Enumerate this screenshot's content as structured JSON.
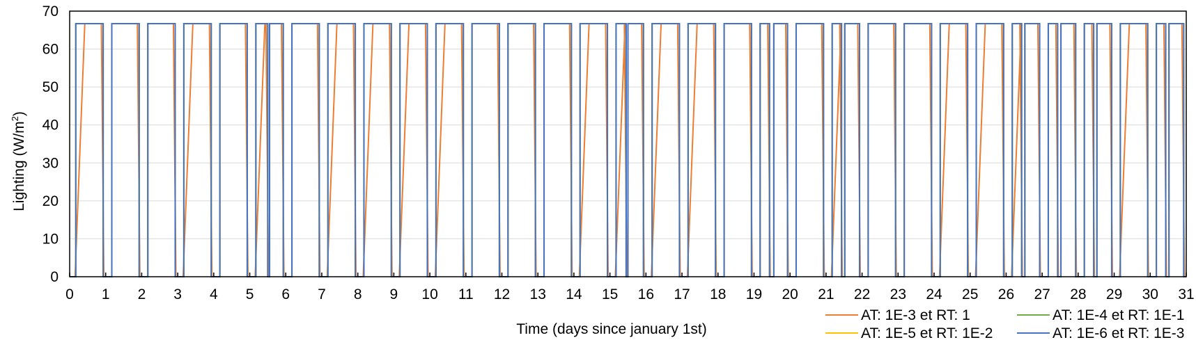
{
  "chart_data": {
    "type": "line",
    "title": "",
    "xlabel": "Time (days since january 1st)",
    "ylabel_main": "Lighting (W/m",
    "ylabel_sup": "2",
    "ylabel_close": ")",
    "xlim": [
      0,
      31
    ],
    "ylim": [
      0,
      70
    ],
    "x_ticks": [
      0,
      1,
      2,
      3,
      4,
      5,
      6,
      7,
      8,
      9,
      10,
      11,
      12,
      13,
      14,
      15,
      16,
      17,
      18,
      19,
      20,
      21,
      22,
      23,
      24,
      25,
      26,
      27,
      28,
      29,
      30,
      31
    ],
    "y_ticks": [
      0,
      10,
      20,
      30,
      40,
      50,
      60,
      70
    ],
    "grid": "horizontal",
    "legend_position": "bottom-right",
    "on_value": 66.7,
    "blue_on_intervals": [
      [
        0.17,
        0.93
      ],
      [
        1.17,
        1.93
      ],
      [
        2.17,
        2.93
      ],
      [
        3.17,
        3.93
      ],
      [
        4.17,
        4.93
      ],
      [
        5.17,
        5.5
      ],
      [
        5.55,
        5.93
      ],
      [
        6.17,
        6.93
      ],
      [
        7.17,
        7.93
      ],
      [
        8.17,
        8.93
      ],
      [
        9.17,
        9.93
      ],
      [
        10.17,
        10.93
      ],
      [
        11.17,
        11.93
      ],
      [
        12.17,
        12.93
      ],
      [
        13.17,
        13.93
      ],
      [
        14.17,
        14.93
      ],
      [
        15.17,
        15.45
      ],
      [
        15.5,
        15.93
      ],
      [
        16.17,
        16.93
      ],
      [
        17.17,
        17.93
      ],
      [
        18.17,
        18.93
      ],
      [
        19.17,
        19.43
      ],
      [
        19.55,
        19.93
      ],
      [
        20.17,
        20.93
      ],
      [
        21.17,
        21.43
      ],
      [
        21.52,
        21.93
      ],
      [
        22.17,
        22.93
      ],
      [
        23.17,
        23.93
      ],
      [
        24.17,
        24.93
      ],
      [
        25.17,
        25.93
      ],
      [
        26.17,
        26.43
      ],
      [
        26.52,
        26.93
      ],
      [
        27.17,
        27.43
      ],
      [
        27.52,
        27.93
      ],
      [
        28.17,
        28.43
      ],
      [
        28.52,
        28.93
      ],
      [
        29.17,
        29.93
      ],
      [
        30.17,
        30.43
      ],
      [
        30.52,
        30.93
      ]
    ],
    "orange_ramp_days": [
      0,
      3,
      5,
      7,
      8,
      9,
      10,
      14,
      15,
      16,
      17,
      21,
      24,
      25,
      26,
      29
    ],
    "orange_ramp_width": 0.25,
    "series": [
      {
        "name": "AT: 1E-3 et RT: 1",
        "color": "#ED7D31"
      },
      {
        "name": "AT: 1E-4 et RT: 1E-1",
        "color": "#70AD47"
      },
      {
        "name": "AT: 1E-5 et RT: 1E-2",
        "color": "#FFC000"
      },
      {
        "name": "AT: 1E-6 et RT: 1E-3",
        "color": "#4472C4"
      }
    ]
  }
}
